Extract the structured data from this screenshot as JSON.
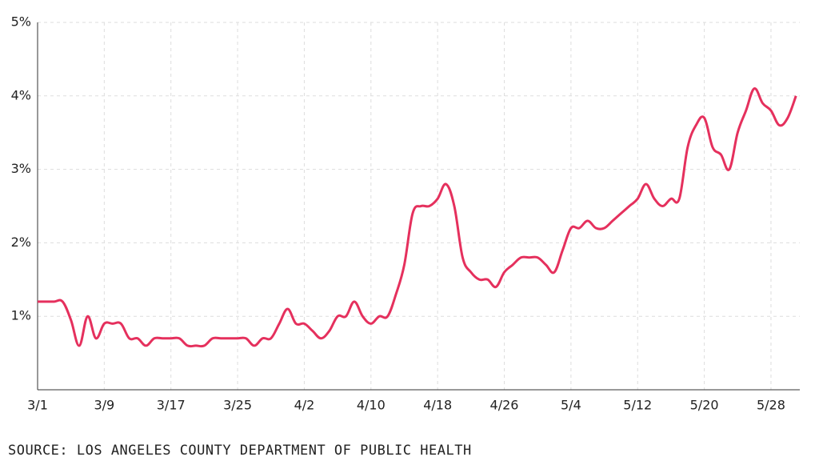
{
  "chart_data": {
    "type": "line",
    "categories": [
      "3/1",
      null,
      null,
      null,
      null,
      null,
      null,
      null,
      "3/9",
      null,
      null,
      null,
      null,
      null,
      null,
      null,
      "3/17",
      null,
      null,
      null,
      null,
      null,
      null,
      null,
      "3/25",
      null,
      null,
      null,
      null,
      null,
      null,
      null,
      "4/2",
      null,
      null,
      null,
      null,
      null,
      null,
      null,
      "4/10",
      null,
      null,
      null,
      null,
      null,
      null,
      null,
      "4/18",
      null,
      null,
      null,
      null,
      null,
      null,
      null,
      "4/26",
      null,
      null,
      null,
      null,
      null,
      null,
      null,
      "5/4",
      null,
      null,
      null,
      null,
      null,
      null,
      null,
      "5/12",
      null,
      null,
      null,
      null,
      null,
      null,
      null,
      "5/20",
      null,
      null,
      null,
      null,
      null,
      null,
      null,
      "5/28",
      null,
      null,
      null
    ],
    "series": [
      {
        "color": "#e5305d",
        "values": [
          1.2,
          1.2,
          1.2,
          1.2,
          0.95,
          0.6,
          1.0,
          0.7,
          0.9,
          0.9,
          0.9,
          0.7,
          0.7,
          0.6,
          0.7,
          0.7,
          0.7,
          0.7,
          0.6,
          0.6,
          0.6,
          0.7,
          0.7,
          0.7,
          0.7,
          0.7,
          0.6,
          0.7,
          0.7,
          0.9,
          1.1,
          0.9,
          0.9,
          0.8,
          0.7,
          0.8,
          1.0,
          1.0,
          1.2,
          1.0,
          0.9,
          1.0,
          1.0,
          1.3,
          1.7,
          2.4,
          2.5,
          2.5,
          2.6,
          2.8,
          2.5,
          1.8,
          1.6,
          1.5,
          1.5,
          1.4,
          1.6,
          1.7,
          1.8,
          1.8,
          1.8,
          1.7,
          1.6,
          1.9,
          2.2,
          2.2,
          2.3,
          2.2,
          2.2,
          2.3,
          2.4,
          2.5,
          2.6,
          2.8,
          2.6,
          2.5,
          2.6,
          2.6,
          3.3,
          3.6,
          3.7,
          3.3,
          3.2,
          3.0,
          3.5,
          3.8,
          4.1,
          3.9,
          3.8,
          3.6,
          3.7,
          4.0
        ]
      }
    ],
    "ylim": [
      0,
      5
    ],
    "yticks": [
      {
        "value": 1,
        "label": "1%"
      },
      {
        "value": 2,
        "label": "2%"
      },
      {
        "value": 3,
        "label": "3%"
      },
      {
        "value": 4,
        "label": "4%"
      },
      {
        "value": 5,
        "label": "5%"
      }
    ],
    "grid": true,
    "source": "SOURCE: LOS ANGELES COUNTY DEPARTMENT OF PUBLIC HEALTH"
  }
}
